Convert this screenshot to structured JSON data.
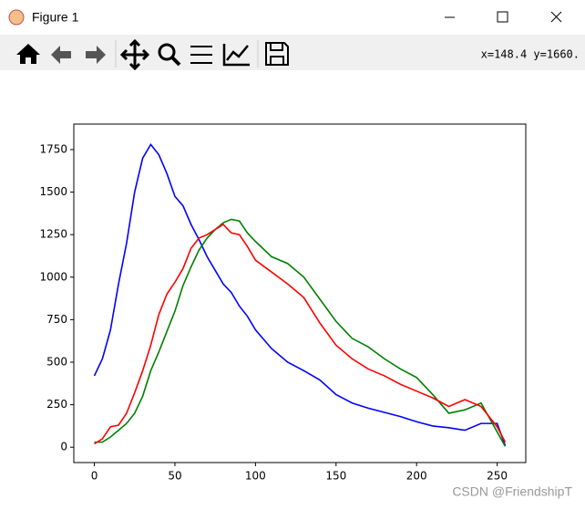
{
  "window": {
    "title": "Figure 1",
    "coordinates": "x=148.4 y=1660."
  },
  "watermark": "CSDN @FriendshipT",
  "chart_data": {
    "type": "line",
    "x": [
      0,
      5,
      10,
      15,
      20,
      25,
      30,
      35,
      40,
      45,
      50,
      55,
      60,
      65,
      70,
      75,
      80,
      85,
      90,
      95,
      100,
      110,
      120,
      130,
      140,
      150,
      160,
      170,
      180,
      190,
      200,
      210,
      220,
      230,
      240,
      250,
      255
    ],
    "series": [
      {
        "name": "b",
        "color": "#0000ff",
        "values": [
          420,
          520,
          690,
          960,
          1200,
          1500,
          1700,
          1780,
          1720,
          1610,
          1475,
          1420,
          1310,
          1220,
          1120,
          1040,
          960,
          910,
          830,
          770,
          690,
          580,
          500,
          450,
          395,
          310,
          260,
          230,
          205,
          180,
          150,
          125,
          115,
          100,
          140,
          140,
          10
        ]
      },
      {
        "name": "g",
        "color": "#008000",
        "values": [
          30,
          30,
          60,
          100,
          140,
          200,
          300,
          450,
          560,
          680,
          800,
          950,
          1060,
          1160,
          1230,
          1280,
          1320,
          1340,
          1330,
          1260,
          1210,
          1120,
          1080,
          1000,
          870,
          740,
          640,
          590,
          520,
          460,
          410,
          310,
          200,
          220,
          260,
          90,
          5
        ]
      },
      {
        "name": "r",
        "color": "#ff0000",
        "values": [
          20,
          50,
          120,
          130,
          200,
          320,
          450,
          600,
          780,
          900,
          970,
          1050,
          1170,
          1230,
          1250,
          1280,
          1310,
          1260,
          1250,
          1180,
          1100,
          1030,
          960,
          880,
          730,
          600,
          520,
          460,
          420,
          370,
          330,
          290,
          240,
          280,
          240,
          120,
          30
        ]
      }
    ],
    "xlim": [
      -12.75,
      267.75
    ],
    "xticks": [
      0,
      50,
      100,
      150,
      200,
      250
    ],
    "ylim": [
      -90,
      1900
    ],
    "yticks": [
      0,
      250,
      500,
      750,
      1000,
      1250,
      1500,
      1750
    ]
  }
}
